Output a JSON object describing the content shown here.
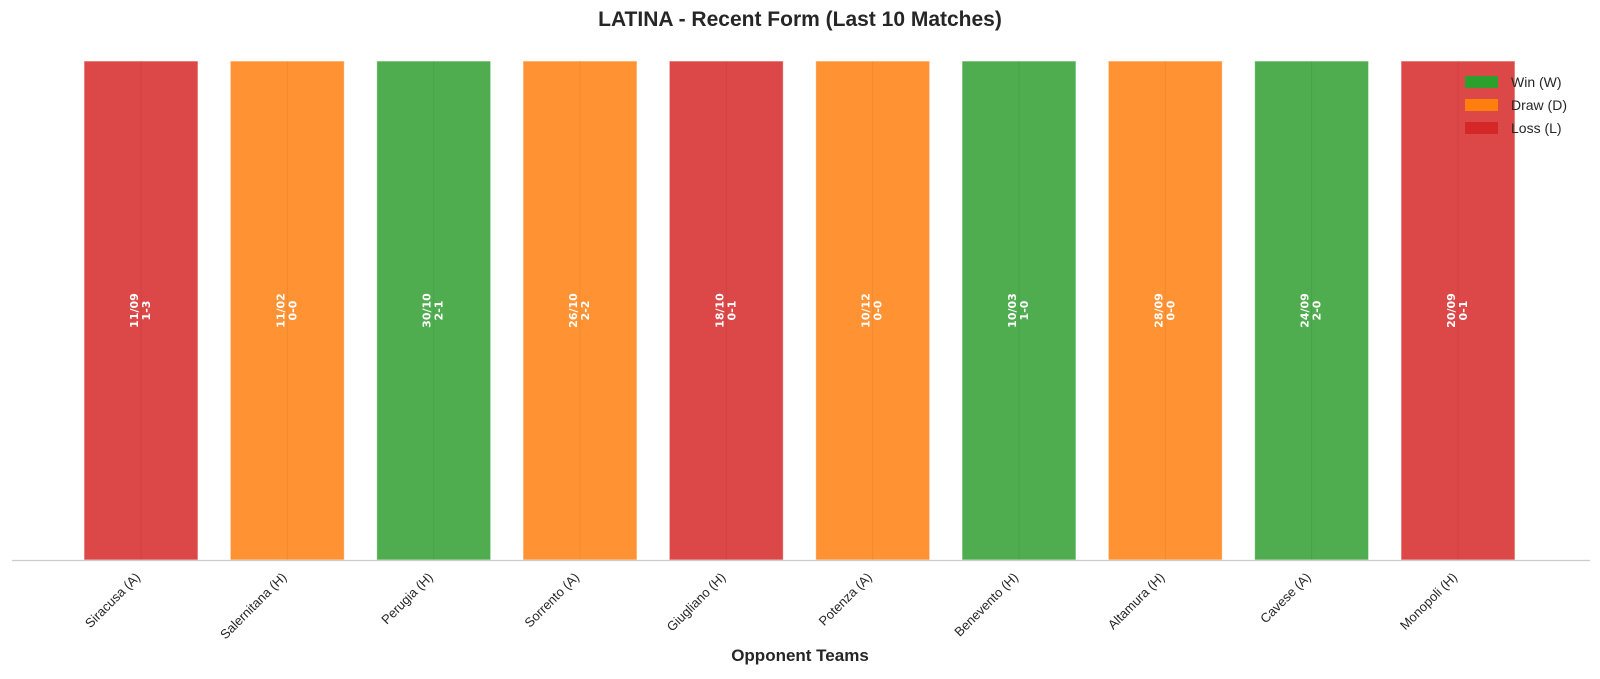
{
  "chart_data": {
    "type": "bar",
    "title": "LATINA - Recent Form (Last 10 Matches)",
    "xlabel": "Opponent Teams",
    "ylabel": "",
    "grid": true,
    "legend_position": "top-right",
    "categories": [
      "Siracusa (A)",
      "Salernitana (H)",
      "Perugia (H)",
      "Sorrento (A)",
      "Giugliano (H)",
      "Potenza (A)",
      "Benevento (H)",
      "Altamura (H)",
      "Cavese (A)",
      "Monopoli (H)"
    ],
    "values": [
      1,
      1,
      1,
      1,
      1,
      1,
      1,
      1,
      1,
      1
    ],
    "results": [
      "L",
      "D",
      "W",
      "D",
      "L",
      "D",
      "W",
      "D",
      "W",
      "L"
    ],
    "dates": [
      "11/09",
      "11/02",
      "30/10",
      "26/10",
      "18/10",
      "10/12",
      "10/03",
      "28/09",
      "24/09",
      "20/09"
    ],
    "scores": [
      "1-3",
      "0-0",
      "2-1",
      "2-2",
      "0-1",
      "0-0",
      "1-0",
      "0-0",
      "2-0",
      "0-1"
    ],
    "legend": [
      {
        "key": "W",
        "label": "Win (W)",
        "color": "#2ca02c"
      },
      {
        "key": "D",
        "label": "Draw (D)",
        "color": "#ff7f0e"
      },
      {
        "key": "L",
        "label": "Loss (L)",
        "color": "#d62728"
      }
    ],
    "bar_colors": {
      "W": "#4fad4f",
      "D": "#ff9233",
      "L": "#dc4748"
    }
  }
}
